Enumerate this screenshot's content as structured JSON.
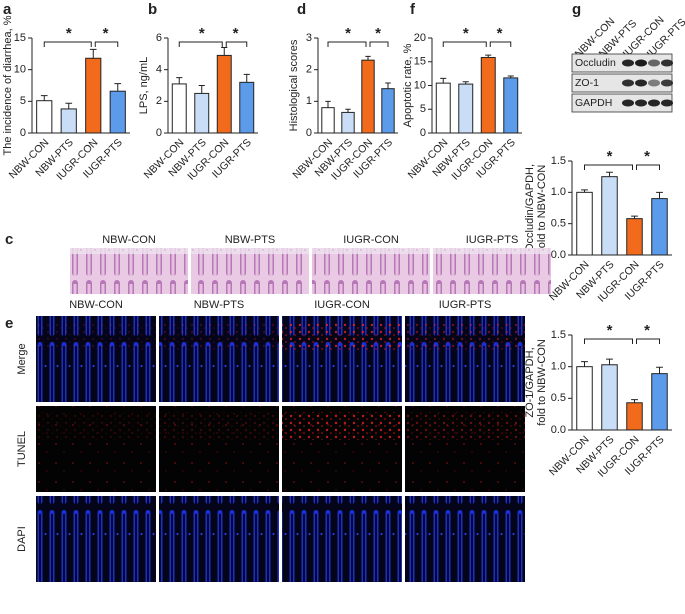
{
  "chart_data": [
    {
      "type": "bar",
      "panel": "a",
      "ylabel": "The incidence of diarrhea, %",
      "categories": [
        "NBW-CON",
        "NBW-PTS",
        "IUGR-CON",
        "IUGR-PTS"
      ],
      "values": [
        5.1,
        3.8,
        11.8,
        6.6
      ],
      "errors": [
        0.8,
        0.9,
        1.4,
        1.2
      ],
      "colors": [
        "#ffffff",
        "#c9def6",
        "#f26b1d",
        "#5b9bea"
      ],
      "ylim": [
        0,
        15
      ],
      "yticks": [
        0,
        5,
        10,
        15
      ],
      "significance": [
        {
          "label": "*",
          "pair": [
            "NBW-CON",
            "IUGR-CON"
          ]
        },
        {
          "label": "*",
          "pair": [
            "IUGR-CON",
            "IUGR-PTS"
          ]
        }
      ]
    },
    {
      "type": "bar",
      "panel": "b",
      "ylabel": "LPS, ng/mL",
      "categories": [
        "NBW-CON",
        "NBW-PTS",
        "IUGR-CON",
        "IUGR-PTS"
      ],
      "values": [
        3.1,
        2.5,
        4.9,
        3.2
      ],
      "errors": [
        0.4,
        0.5,
        0.5,
        0.5
      ],
      "colors": [
        "#ffffff",
        "#c9def6",
        "#f26b1d",
        "#5b9bea"
      ],
      "ylim": [
        0,
        6
      ],
      "yticks": [
        0,
        2,
        4,
        6
      ],
      "significance": [
        {
          "label": "*",
          "pair": [
            "NBW-CON",
            "IUGR-CON"
          ]
        },
        {
          "label": "*",
          "pair": [
            "IUGR-CON",
            "IUGR-PTS"
          ]
        }
      ]
    },
    {
      "type": "bar",
      "panel": "d",
      "ylabel": "Histological scores",
      "categories": [
        "NBW-CON",
        "NBW-PTS",
        "IUGR-CON",
        "IUGR-PTS"
      ],
      "values": [
        0.8,
        0.65,
        2.3,
        1.4
      ],
      "errors": [
        0.2,
        0.1,
        0.12,
        0.18
      ],
      "colors": [
        "#ffffff",
        "#c9def6",
        "#f26b1d",
        "#5b9bea"
      ],
      "ylim": [
        0,
        3
      ],
      "yticks": [
        0,
        1,
        2,
        3
      ],
      "significance": [
        {
          "label": "*",
          "pair": [
            "NBW-CON",
            "IUGR-CON"
          ]
        },
        {
          "label": "*",
          "pair": [
            "IUGR-CON",
            "IUGR-PTS"
          ]
        }
      ]
    },
    {
      "type": "bar",
      "panel": "f",
      "ylabel": "Apoptotic rate, %",
      "categories": [
        "NBW-CON",
        "NBW-PTS",
        "IUGR-CON",
        "IUGR-PTS"
      ],
      "values": [
        10.5,
        10.3,
        15.9,
        11.6
      ],
      "errors": [
        1.0,
        0.5,
        0.5,
        0.4
      ],
      "colors": [
        "#ffffff",
        "#c9def6",
        "#f26b1d",
        "#5b9bea"
      ],
      "ylim": [
        0,
        20
      ],
      "yticks": [
        0,
        5,
        10,
        15,
        20
      ],
      "significance": [
        {
          "label": "*",
          "pair": [
            "NBW-CON",
            "IUGR-CON"
          ]
        },
        {
          "label": "*",
          "pair": [
            "IUGR-CON",
            "IUGR-PTS"
          ]
        }
      ]
    },
    {
      "type": "bar",
      "ylabel": [
        "Occludin/GAPDH,",
        "fold to NBW-CON"
      ],
      "categories": [
        "NBW-CON",
        "NBW-PTS",
        "IUGR-CON",
        "IUGR-PTS"
      ],
      "values": [
        1.0,
        1.25,
        0.58,
        0.9
      ],
      "errors": [
        0.04,
        0.07,
        0.04,
        0.1
      ],
      "colors": [
        "#ffffff",
        "#c9def6",
        "#f26b1d",
        "#5b9bea"
      ],
      "ylim": [
        0,
        1.5
      ],
      "yticks": [
        {
          "value": 0,
          "label": "0.0"
        },
        {
          "value": 0.5,
          "label": "0.5"
        },
        {
          "value": 1,
          "label": "1.0"
        },
        {
          "value": 1.5,
          "label": "1.5"
        }
      ],
      "significance": [
        {
          "label": "*",
          "pair": [
            "NBW-CON",
            "IUGR-CON"
          ]
        },
        {
          "label": "*",
          "pair": [
            "IUGR-CON",
            "IUGR-PTS"
          ]
        }
      ]
    },
    {
      "type": "bar",
      "ylabel": [
        "ZO-1/GAPDH,",
        "fold to NBW-CON"
      ],
      "categories": [
        "NBW-CON",
        "NBW-PTS",
        "IUGR-CON",
        "IUGR-PTS"
      ],
      "values": [
        1.0,
        1.03,
        0.43,
        0.89
      ],
      "errors": [
        0.08,
        0.09,
        0.05,
        0.1
      ],
      "colors": [
        "#ffffff",
        "#c9def6",
        "#f26b1d",
        "#5b9bea"
      ],
      "ylim": [
        0,
        1.5
      ],
      "yticks": [
        {
          "value": 0,
          "label": "0.0"
        },
        {
          "value": 0.5,
          "label": "0.5"
        },
        {
          "value": 1,
          "label": "1.0"
        },
        {
          "value": 1.5,
          "label": "1.5"
        }
      ],
      "significance": [
        {
          "label": "*",
          "pair": [
            "NBW-CON",
            "IUGR-CON"
          ]
        },
        {
          "label": "*",
          "pair": [
            "IUGR-CON",
            "IUGR-PTS"
          ]
        }
      ]
    }
  ],
  "histology": {
    "panel": "c",
    "columns": [
      "NBW-CON",
      "NBW-PTS",
      "IUGR-CON",
      "IUGR-PTS"
    ]
  },
  "fluorescence": {
    "panel": "e",
    "columns": [
      "NBW-CON",
      "NBW-PTS",
      "IUGR-CON",
      "IUGR-PTS"
    ],
    "rows": [
      "Merge",
      "TUNEL",
      "DAPI"
    ]
  },
  "western_blot": {
    "panel": "g",
    "lanes": [
      "NBW-CON",
      "NBW-PTS",
      "IUGR-CON",
      "IUGR-PTS"
    ],
    "bands": [
      "Occludin",
      "ZO-1",
      "GAPDH"
    ]
  }
}
